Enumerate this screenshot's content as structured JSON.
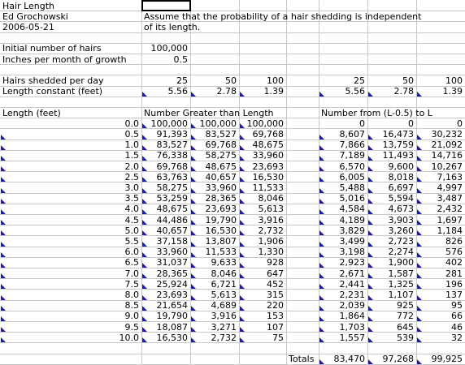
{
  "header": {
    "title": "Hair Length",
    "author": "Ed Grochowski",
    "date": "2006-05-21"
  },
  "note": [
    "Assume that the probability of a hair shedding is independent",
    "of its length."
  ],
  "params": {
    "initial_label": "Initial number of hairs",
    "initial_value": "100,000",
    "inches_label": "Inches per month of growth",
    "inches_value": "0.5"
  },
  "shed": {
    "label": "Hairs shedded per day",
    "values": [
      "25",
      "50",
      "100",
      "25",
      "50",
      "100"
    ]
  },
  "constant": {
    "label": "Length constant (feet)",
    "values": [
      "5.56",
      "2.78",
      "1.39",
      "5.56",
      "2.78",
      "1.39"
    ]
  },
  "table": {
    "length_header": "Length (feet)",
    "greater_header": "Number Greater than Length",
    "from_header": "Number from (L-0.5) to L",
    "rows": [
      [
        "0.0",
        "100,000",
        "100,000",
        "100,000",
        "0",
        "0",
        "0"
      ],
      [
        "0.5",
        "91,393",
        "83,527",
        "69,768",
        "8,607",
        "16,473",
        "30,232"
      ],
      [
        "1.0",
        "83,527",
        "69,768",
        "48,675",
        "7,866",
        "13,759",
        "21,092"
      ],
      [
        "1.5",
        "76,338",
        "58,275",
        "33,960",
        "7,189",
        "11,493",
        "14,716"
      ],
      [
        "2.0",
        "69,768",
        "48,675",
        "23,693",
        "6,570",
        "9,600",
        "10,267"
      ],
      [
        "2.5",
        "63,763",
        "40,657",
        "16,530",
        "6,005",
        "8,018",
        "7,163"
      ],
      [
        "3.0",
        "58,275",
        "33,960",
        "11,533",
        "5,488",
        "6,697",
        "4,997"
      ],
      [
        "3.5",
        "53,259",
        "28,365",
        "8,046",
        "5,016",
        "5,594",
        "3,487"
      ],
      [
        "4.0",
        "48,675",
        "23,693",
        "5,613",
        "4,584",
        "4,673",
        "2,432"
      ],
      [
        "4.5",
        "44,486",
        "19,790",
        "3,916",
        "4,189",
        "3,903",
        "1,697"
      ],
      [
        "5.0",
        "40,657",
        "16,530",
        "2,732",
        "3,829",
        "3,260",
        "1,184"
      ],
      [
        "5.5",
        "37,158",
        "13,807",
        "1,906",
        "3,499",
        "2,723",
        "826"
      ],
      [
        "6.0",
        "33,960",
        "11,533",
        "1,330",
        "3,198",
        "2,274",
        "576"
      ],
      [
        "6.5",
        "31,037",
        "9,633",
        "928",
        "2,923",
        "1,900",
        "402"
      ],
      [
        "7.0",
        "28,365",
        "8,046",
        "647",
        "2,671",
        "1,587",
        "281"
      ],
      [
        "7.5",
        "25,924",
        "6,721",
        "452",
        "2,441",
        "1,325",
        "196"
      ],
      [
        "8.0",
        "23,693",
        "5,613",
        "315",
        "2,231",
        "1,107",
        "137"
      ],
      [
        "8.5",
        "21,654",
        "4,689",
        "220",
        "2,039",
        "925",
        "95"
      ],
      [
        "9.0",
        "19,790",
        "3,916",
        "153",
        "1,864",
        "772",
        "66"
      ],
      [
        "9.5",
        "18,087",
        "3,271",
        "107",
        "1,703",
        "645",
        "46"
      ],
      [
        "10.0",
        "16,530",
        "2,732",
        "75",
        "1,557",
        "539",
        "32"
      ]
    ]
  },
  "totals": {
    "label": "Totals",
    "values": [
      "83,470",
      "97,268",
      "99,925"
    ]
  }
}
